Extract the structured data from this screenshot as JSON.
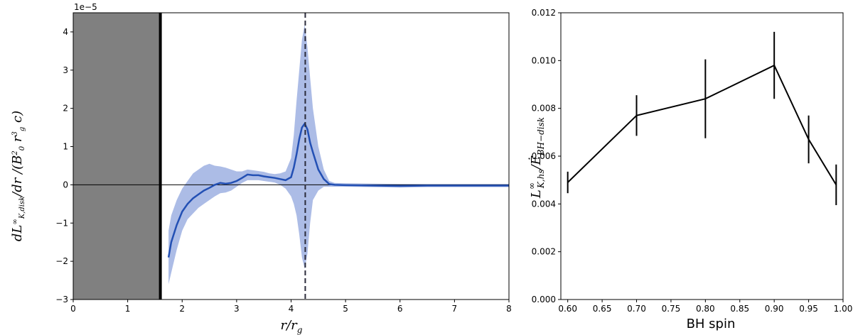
{
  "chart_data": [
    {
      "type": "line",
      "xlabel": "r/r_g",
      "ylabel": "dL^∞_{K,disk}/dr /(B_0^2 r_g^3 c)",
      "y_offset_label": "1e−5",
      "xlim": [
        0,
        8
      ],
      "ylim": [
        -3,
        4.5
      ],
      "x_ticks": [
        "0",
        "1",
        "2",
        "3",
        "4",
        "5",
        "6",
        "7",
        "8"
      ],
      "y_ticks": [
        "−3",
        "−2",
        "−1",
        "0",
        "1",
        "2",
        "3",
        "4"
      ],
      "shaded_region": {
        "x": [
          0,
          1.6
        ],
        "color": "#808080"
      },
      "vertical_lines": [
        {
          "x": 1.6,
          "style": "solid",
          "color": "#000000"
        },
        {
          "x": 4.26,
          "style": "dashed",
          "color": "#2b2b3a"
        }
      ],
      "horizontal_line": {
        "y": 0,
        "color": "#000000"
      },
      "series": [
        {
          "color": "#2350b4",
          "band_color": "#a3b5e3",
          "x": [
            1.75,
            1.8,
            1.9,
            2.0,
            2.1,
            2.2,
            2.3,
            2.4,
            2.5,
            2.6,
            2.7,
            2.8,
            2.9,
            3.0,
            3.1,
            3.2,
            3.3,
            3.4,
            3.5,
            3.6,
            3.7,
            3.8,
            3.9,
            4.0,
            4.05,
            4.1,
            4.15,
            4.2,
            4.25,
            4.3,
            4.35,
            4.4,
            4.5,
            4.6,
            4.7,
            4.8,
            5.0,
            5.5,
            6.0,
            6.5,
            7.0,
            7.5,
            8.0
          ],
          "y": [
            -1.9,
            -1.5,
            -1.05,
            -0.7,
            -0.5,
            -0.35,
            -0.25,
            -0.15,
            -0.08,
            0.0,
            0.05,
            0.03,
            0.05,
            0.1,
            0.18,
            0.27,
            0.25,
            0.25,
            0.22,
            0.2,
            0.18,
            0.15,
            0.12,
            0.2,
            0.45,
            0.8,
            1.2,
            1.5,
            1.6,
            1.45,
            1.1,
            0.85,
            0.4,
            0.15,
            0.02,
            0.0,
            -0.01,
            -0.02,
            -0.03,
            -0.02,
            -0.02,
            -0.02,
            -0.02
          ],
          "y_low": [
            -2.6,
            -2.3,
            -1.7,
            -1.2,
            -0.9,
            -0.75,
            -0.6,
            -0.5,
            -0.4,
            -0.3,
            -0.22,
            -0.2,
            -0.15,
            -0.05,
            0.05,
            0.12,
            0.12,
            0.12,
            0.1,
            0.08,
            0.06,
            0.0,
            -0.1,
            -0.3,
            -0.5,
            -0.8,
            -1.3,
            -1.9,
            -2.2,
            -1.8,
            -1.0,
            -0.4,
            -0.15,
            -0.05,
            -0.05,
            -0.05,
            -0.05,
            -0.06,
            -0.07,
            -0.06,
            -0.06,
            -0.06,
            -0.06
          ],
          "y_high": [
            -1.2,
            -0.8,
            -0.4,
            -0.1,
            0.1,
            0.3,
            0.4,
            0.5,
            0.55,
            0.5,
            0.48,
            0.45,
            0.4,
            0.35,
            0.35,
            0.4,
            0.38,
            0.36,
            0.34,
            0.3,
            0.28,
            0.3,
            0.35,
            0.7,
            1.3,
            2.2,
            3.0,
            3.8,
            4.2,
            3.6,
            2.8,
            2.0,
            1.0,
            0.4,
            0.1,
            0.05,
            0.04,
            0.03,
            0.02,
            0.02,
            0.02,
            0.02,
            0.02
          ]
        }
      ]
    },
    {
      "type": "line",
      "xlabel": "BH spin",
      "ylabel": "L^∞_{K,hs} / Ė_{BH−disk}",
      "xlim": [
        0.59,
        1.0
      ],
      "ylim": [
        0.0,
        0.012
      ],
      "x_ticks": [
        "0.60",
        "0.65",
        "0.70",
        "0.75",
        "0.80",
        "0.85",
        "0.90",
        "0.95",
        "1.00"
      ],
      "y_ticks": [
        "0.000",
        "0.002",
        "0.004",
        "0.006",
        "0.008",
        "0.010",
        "0.012"
      ],
      "series": [
        {
          "color": "#000000",
          "x": [
            0.6,
            0.7,
            0.8,
            0.9,
            0.95,
            0.99
          ],
          "y": [
            0.0049,
            0.0077,
            0.0084,
            0.0098,
            0.0067,
            0.0048
          ],
          "yerr": [
            0.00045,
            0.00085,
            0.00165,
            0.0014,
            0.001,
            0.00085
          ]
        }
      ]
    }
  ]
}
